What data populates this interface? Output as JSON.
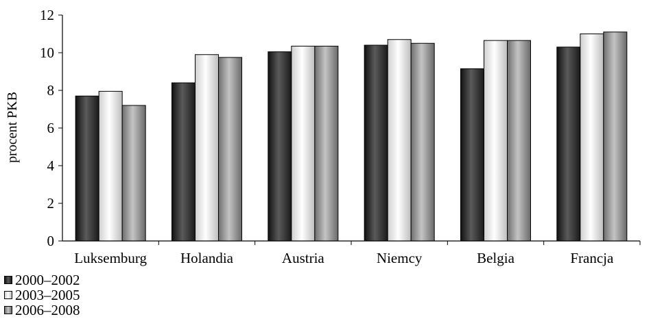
{
  "chart_data": {
    "type": "bar",
    "title": "",
    "xlabel": "",
    "ylabel": "procent PKB",
    "ylim": [
      0,
      12
    ],
    "yticks": [
      0,
      2,
      4,
      6,
      8,
      10,
      12
    ],
    "grid": false,
    "legend_position": "bottom-left",
    "categories": [
      "Luksemburg",
      "Holandia",
      "Austria",
      "Niemcy",
      "Belgia",
      "Francja"
    ],
    "series": [
      {
        "name": "2000–2002",
        "values": [
          7.7,
          8.4,
          10.05,
          10.4,
          9.15,
          10.3
        ],
        "color": "#333333",
        "style": "dark-gradient"
      },
      {
        "name": "2003–2005",
        "values": [
          7.95,
          9.9,
          10.35,
          10.7,
          10.65,
          11.0
        ],
        "color": "#e6e6e6",
        "style": "light-gradient"
      },
      {
        "name": "2006–2008",
        "values": [
          7.2,
          9.75,
          10.35,
          10.5,
          10.65,
          11.1
        ],
        "color": "#9a9a9a",
        "style": "mid-gradient"
      }
    ]
  }
}
